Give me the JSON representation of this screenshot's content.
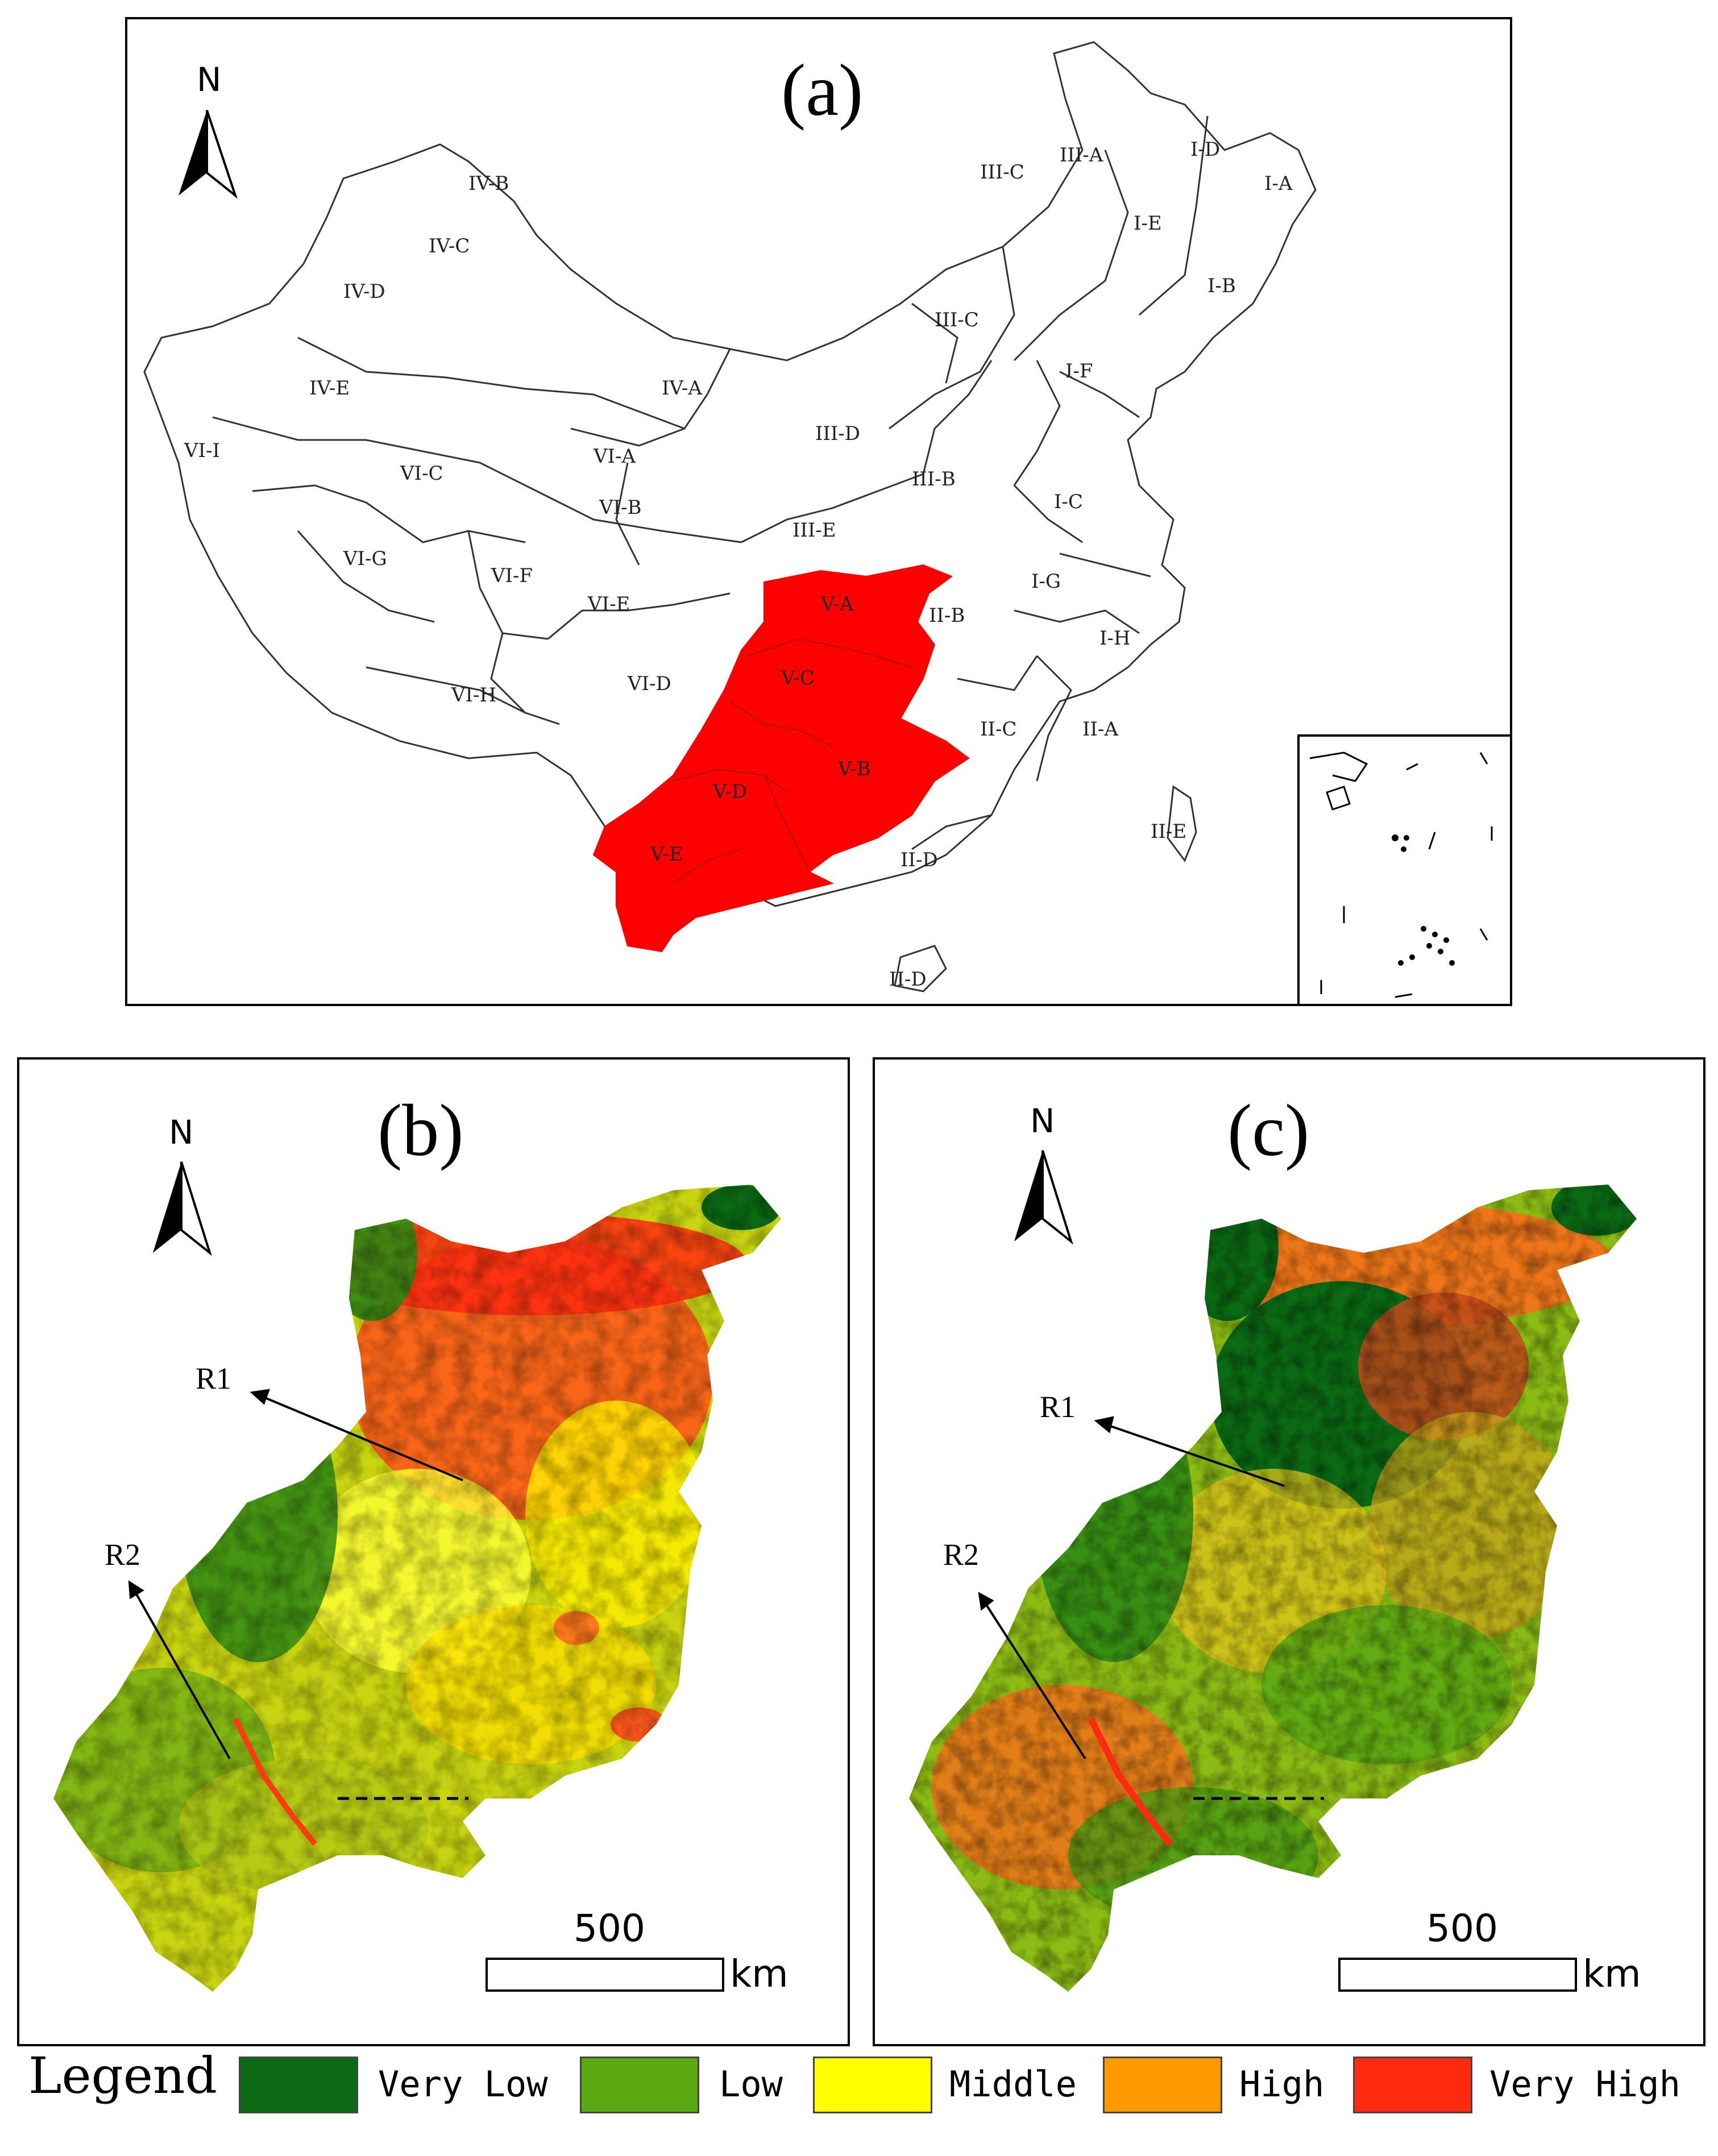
{
  "panels": {
    "a": {
      "label": "(a)",
      "north": "N"
    },
    "b": {
      "label": "(b)",
      "north": "N",
      "scale_value": "500",
      "scale_unit": "km"
    },
    "c": {
      "label": "(c)",
      "north": "N",
      "scale_value": "500",
      "scale_unit": "km"
    }
  },
  "zones": [
    "I-A",
    "I-B",
    "I-C",
    "I-D",
    "I-E",
    "I-F",
    "I-G",
    "I-H",
    "II-A",
    "II-B",
    "II-C",
    "II-D",
    "II-D",
    "II-E",
    "III-A",
    "III-B",
    "III-C",
    "III-C",
    "III-D",
    "III-E",
    "IV-A",
    "IV-B",
    "IV-C",
    "IV-D",
    "IV-E",
    "V-A",
    "V-B",
    "V-C",
    "V-D",
    "V-E",
    "VI-A",
    "VI-B",
    "VI-C",
    "VI-D",
    "VI-E",
    "VI-F",
    "VI-G",
    "VI-H",
    "VI-I"
  ],
  "regions": {
    "r1": "R1",
    "r2": "R2"
  },
  "legend": {
    "title": "Legend",
    "items": [
      {
        "label": "Very Low",
        "color": "#0b6a14"
      },
      {
        "label": "Low",
        "color": "#5aa812"
      },
      {
        "label": "Middle",
        "color": "#ffff00"
      },
      {
        "label": "High",
        "color": "#ff9900"
      },
      {
        "label": "Very High",
        "color": "#ff2a10"
      }
    ]
  },
  "colors": {
    "highlight": "#ff0000"
  }
}
